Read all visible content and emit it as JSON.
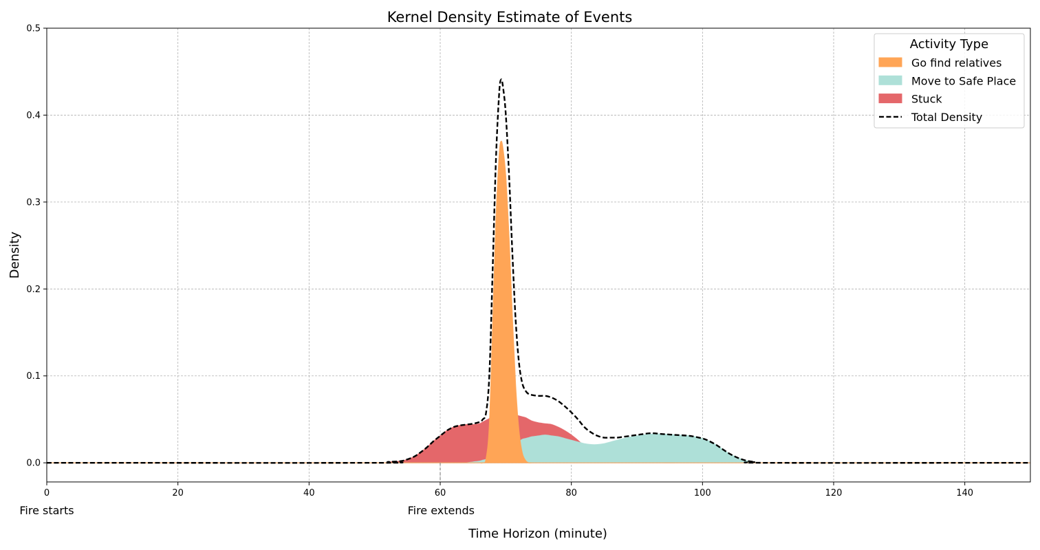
{
  "chart_data": {
    "type": "area",
    "title": "Kernel Density Estimate of Events",
    "xlabel": "Time Horizon (minute)",
    "ylabel": "Density",
    "xlim": [
      0,
      150
    ],
    "ylim": [
      -0.022,
      0.5
    ],
    "x_ticks": [
      0,
      20,
      40,
      60,
      80,
      100,
      120,
      140
    ],
    "y_ticks": [
      0.0,
      0.1,
      0.2,
      0.3,
      0.4,
      0.5
    ],
    "y_tick_labels": [
      "0.0",
      "0.1",
      "0.2",
      "0.3",
      "0.4",
      "0.5"
    ],
    "grid": true,
    "legend": {
      "title": "Activity Type",
      "position": "top-right",
      "entries": [
        "Go find relatives",
        "Move to Safe Place",
        "Stuck",
        "Total Density"
      ]
    },
    "annotations": [
      {
        "text": "Fire starts",
        "x": 0
      },
      {
        "text": "Fire extends",
        "x": 60
      }
    ],
    "x": [
      0,
      50,
      52,
      54,
      55,
      56,
      57,
      58,
      59,
      60,
      61,
      62,
      63,
      64,
      65,
      66,
      66.5,
      67,
      67.5,
      68,
      68.5,
      69,
      69.3,
      69.6,
      70,
      70.5,
      71,
      71.5,
      72,
      72.5,
      73,
      73.5,
      74,
      75,
      76,
      77,
      78,
      79,
      80,
      81,
      82,
      83,
      84,
      85,
      86,
      87,
      88,
      90,
      92,
      94,
      96,
      98,
      100,
      101,
      102,
      103,
      104,
      105,
      106,
      107,
      108,
      110,
      150
    ],
    "series": [
      {
        "name": "Go find relatives",
        "color": "#ffa556",
        "values": [
          0,
          0,
          0,
          0,
          0,
          0,
          0,
          0,
          0,
          0,
          0,
          0,
          0,
          0,
          0,
          0,
          0,
          0.005,
          0.045,
          0.16,
          0.28,
          0.355,
          0.37,
          0.36,
          0.33,
          0.26,
          0.17,
          0.09,
          0.038,
          0.012,
          0.003,
          0,
          0,
          0,
          0,
          0,
          0,
          0,
          0,
          0,
          0,
          0,
          0,
          0,
          0,
          0,
          0,
          0,
          0,
          0,
          0,
          0,
          0,
          0,
          0,
          0,
          0,
          0,
          0,
          0,
          0,
          0,
          0
        ]
      },
      {
        "name": "Move to Safe Place",
        "color": "#aee0d8",
        "values": [
          0,
          0,
          0,
          0,
          0,
          0,
          0,
          0,
          0,
          0,
          0,
          0,
          0,
          0,
          0.001,
          0.002,
          0.003,
          0.004,
          0.006,
          0.009,
          0.012,
          0.013,
          0.013,
          0.013,
          0.013,
          0.014,
          0.016,
          0.02,
          0.024,
          0.027,
          0.028,
          0.029,
          0.03,
          0.031,
          0.032,
          0.031,
          0.03,
          0.028,
          0.026,
          0.024,
          0.022,
          0.021,
          0.021,
          0.022,
          0.024,
          0.026,
          0.028,
          0.031,
          0.033,
          0.033,
          0.032,
          0.031,
          0.028,
          0.025,
          0.021,
          0.016,
          0.011,
          0.007,
          0.004,
          0.002,
          0.001,
          0,
          0
        ]
      },
      {
        "name": "Stuck",
        "color": "#e4676a",
        "values": [
          0,
          0,
          0.001,
          0.002,
          0.004,
          0.007,
          0.012,
          0.018,
          0.025,
          0.031,
          0.037,
          0.041,
          0.043,
          0.044,
          0.044,
          0.045,
          0.047,
          0.049,
          0.051,
          0.054,
          0.057,
          0.058,
          0.058,
          0.058,
          0.058,
          0.057,
          0.056,
          0.055,
          0.054,
          0.053,
          0.052,
          0.05,
          0.048,
          0.046,
          0.045,
          0.044,
          0.041,
          0.037,
          0.032,
          0.026,
          0.019,
          0.014,
          0.01,
          0.007,
          0.005,
          0.003,
          0.002,
          0.001,
          0.001,
          0,
          0,
          0,
          0,
          0,
          0,
          0,
          0,
          0,
          0,
          0,
          0,
          0,
          0
        ]
      },
      {
        "name": "Total Density",
        "color": "#000000",
        "values": [
          0,
          0,
          0.001,
          0.002,
          0.004,
          0.007,
          0.012,
          0.018,
          0.025,
          0.031,
          0.037,
          0.041,
          0.043,
          0.044,
          0.045,
          0.047,
          0.05,
          0.058,
          0.102,
          0.223,
          0.349,
          0.426,
          0.441,
          0.431,
          0.401,
          0.331,
          0.242,
          0.165,
          0.116,
          0.092,
          0.083,
          0.079,
          0.078,
          0.077,
          0.077,
          0.075,
          0.071,
          0.065,
          0.058,
          0.05,
          0.041,
          0.035,
          0.031,
          0.029,
          0.029,
          0.029,
          0.03,
          0.032,
          0.034,
          0.033,
          0.032,
          0.031,
          0.028,
          0.025,
          0.021,
          0.016,
          0.011,
          0.007,
          0.004,
          0.002,
          0.001,
          0,
          0
        ]
      }
    ]
  }
}
